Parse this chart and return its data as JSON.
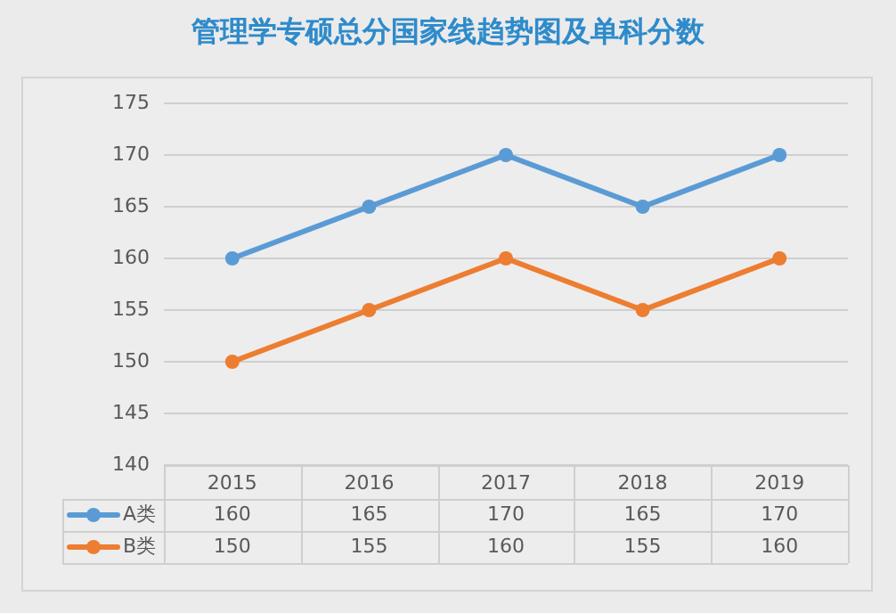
{
  "chart_data": {
    "type": "line",
    "title": "管理学专硕总分国家线趋势图及单科分数",
    "categories": [
      "2015",
      "2016",
      "2017",
      "2018",
      "2019"
    ],
    "series": [
      {
        "name": "A类",
        "color": "#5b9bd5",
        "values": [
          160,
          165,
          170,
          165,
          170
        ]
      },
      {
        "name": "B类",
        "color": "#ed7d31",
        "values": [
          150,
          155,
          160,
          155,
          160
        ]
      }
    ],
    "ylim": [
      140,
      175
    ],
    "yticks": [
      140,
      145,
      150,
      155,
      160,
      165,
      170,
      175
    ],
    "grid": "y",
    "legend": "bottom left",
    "marker": "circle",
    "line_style": "solid",
    "data_labels": true
  }
}
